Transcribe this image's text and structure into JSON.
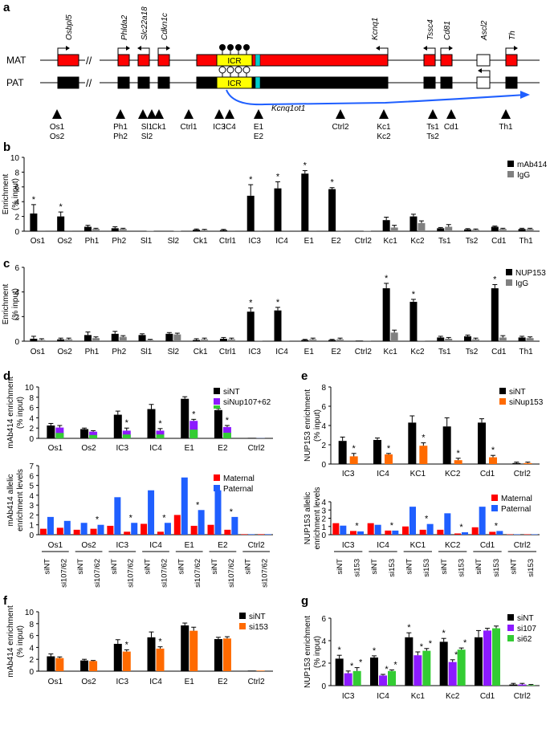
{
  "panels": {
    "a": "a",
    "b": "b",
    "c": "c",
    "d": "d",
    "e": "e",
    "f": "f",
    "g": "g"
  },
  "colors": {
    "red": "#ff0000",
    "black": "#000000",
    "gray": "#808080",
    "yellow": "#ffff00",
    "cyan": "#00cccc",
    "blue": "#1f5fff",
    "purple": "#8c1aff",
    "green": "#33cc33",
    "orange": "#ff6a00",
    "curve": "#1f5fff"
  },
  "locus": {
    "mat_label": "MAT",
    "pat_label": "PAT",
    "icr_label": "ICR",
    "noncoding_label": "Kcnq1ot1",
    "genes": [
      "Osbpl5",
      "Phlda2",
      "Slc22a18",
      "Cdkn1c",
      "Kcnq1",
      "Tssc4",
      "Cd81",
      "Ascl2",
      "Th"
    ],
    "probes": [
      [
        "Os1",
        "Os2"
      ],
      [
        "Ph1",
        "Ph2"
      ],
      [
        "Sl1",
        "Sl2"
      ],
      [
        "Ck1"
      ],
      [
        "Ctrl1"
      ],
      [
        "IC3"
      ],
      [
        "IC4"
      ],
      [
        "E1",
        "E2"
      ],
      [
        "Ctrl2"
      ],
      [
        "Kc1",
        "Kc2"
      ],
      [
        "Ts1",
        "Ts2"
      ],
      [
        "Cd1"
      ],
      [
        "Th1"
      ]
    ]
  },
  "chart_data": [
    {
      "id": "b",
      "type": "bar",
      "ylabel": "Enrichment\n(% input)",
      "ylim": [
        0,
        10
      ],
      "yticks": [
        0,
        2,
        4,
        6,
        8,
        10
      ],
      "categories": [
        "Os1",
        "Os2",
        "Ph1",
        "Ph2",
        "Sl1",
        "Sl2",
        "Ck1",
        "Ctrl1",
        "IC3",
        "IC4",
        "E1",
        "E2",
        "Ctrl2",
        "Kc1",
        "Kc2",
        "Ts1",
        "Ts2",
        "Cd1",
        "Th1"
      ],
      "series": [
        {
          "name": "mAb414",
          "color": "#000000",
          "values": [
            2.4,
            2.0,
            0.6,
            0.4,
            0.05,
            0.05,
            0.2,
            0.15,
            4.8,
            5.8,
            7.8,
            5.7,
            0.05,
            1.5,
            2.0,
            0.4,
            0.25,
            0.6,
            0.3
          ]
        },
        {
          "name": "IgG",
          "color": "#808080",
          "values": [
            0.1,
            0.1,
            0.3,
            0.3,
            0.05,
            0.05,
            0.15,
            0.1,
            0.1,
            0.1,
            0.1,
            0.1,
            0.05,
            0.5,
            1.1,
            0.6,
            0.2,
            0.3,
            0.3
          ]
        }
      ],
      "errors": [
        [
          1.2,
          0.6,
          0.2,
          0.2,
          0,
          0,
          0.1,
          0.1,
          1.5,
          0.9,
          0.4,
          0.2,
          0,
          0.4,
          0.3,
          0.1,
          0.1,
          0.1,
          0.1
        ],
        [
          0,
          0,
          0.1,
          0.1,
          0,
          0,
          0.1,
          0,
          0,
          0,
          0,
          0,
          0,
          0.3,
          0.3,
          0.3,
          0.1,
          0.1,
          0.1
        ]
      ],
      "stars": [
        "Os1",
        "Os2",
        "IC3",
        "IC4",
        "E1",
        "E2"
      ]
    },
    {
      "id": "c",
      "type": "bar",
      "ylabel": "Enrichment\n(% input)",
      "ylim": [
        0,
        6
      ],
      "yticks": [
        0,
        2,
        4,
        6
      ],
      "categories": [
        "Os1",
        "Os2",
        "Ph1",
        "Ph2",
        "Sl1",
        "Sl2",
        "Ck1",
        "Ctrl1",
        "IC3",
        "IC4",
        "E1",
        "E2",
        "Ctrl2",
        "Kc1",
        "Kc2",
        "Ts1",
        "Ts2",
        "Cd1",
        "Th1"
      ],
      "series": [
        {
          "name": "NUP153",
          "color": "#000000",
          "values": [
            0.2,
            0.15,
            0.5,
            0.6,
            0.5,
            0.6,
            0.1,
            0.2,
            2.4,
            2.5,
            0.1,
            0.1,
            0.05,
            4.3,
            3.2,
            0.3,
            0.4,
            4.3,
            0.3
          ]
        },
        {
          "name": "IgG",
          "color": "#808080",
          "values": [
            0.1,
            0.15,
            0.25,
            0.35,
            0.1,
            0.55,
            0.15,
            0.15,
            0.05,
            0.05,
            0.15,
            0.15,
            0.05,
            0.7,
            0.05,
            0.2,
            0.15,
            0.3,
            0.25
          ]
        }
      ],
      "errors": [
        [
          0.2,
          0.1,
          0.25,
          0.2,
          0.1,
          0.1,
          0.1,
          0.1,
          0.3,
          0.25,
          0.05,
          0.05,
          0,
          0.4,
          0.2,
          0.1,
          0.1,
          0.3,
          0.1
        ],
        [
          0.1,
          0.1,
          0.1,
          0.1,
          0.05,
          0.1,
          0.1,
          0.1,
          0,
          0,
          0.1,
          0.1,
          0,
          0.2,
          0,
          0.1,
          0.1,
          0.15,
          0.1
        ]
      ],
      "stars": [
        "IC3",
        "IC4",
        "Kc1",
        "Kc2",
        "Cd1"
      ]
    },
    {
      "id": "d-top",
      "type": "bar",
      "ylabel": "mAb414 enrichment\n(% input)",
      "ylim": [
        0,
        10
      ],
      "yticks": [
        0,
        2,
        4,
        6,
        8,
        10
      ],
      "categories": [
        "Os1",
        "Os2",
        "IC3",
        "IC4",
        "E1",
        "E2",
        "Ctrl2"
      ],
      "series": [
        {
          "name": "siNT",
          "color": "#000000",
          "values": [
            2.5,
            1.8,
            4.6,
            5.7,
            7.7,
            5.5,
            0.1
          ]
        },
        {
          "name": "siNup107+62",
          "color": "#8c1aff",
          "values": [
            2.1,
            1.3,
            1.5,
            1.5,
            3.4,
            2.2,
            0.1
          ]
        }
      ],
      "errors": [
        [
          0.4,
          0.2,
          0.7,
          0.9,
          0.4,
          0.3,
          0
        ],
        [
          0.4,
          0.2,
          0.5,
          0.4,
          0.3,
          0.3,
          0
        ]
      ],
      "stars": [
        "IC3",
        "IC4",
        "E1",
        "E2"
      ]
    },
    {
      "id": "d-bottom",
      "type": "bar",
      "ylabel": "mAb414 allelic\nenrichment levels",
      "ylim": [
        0,
        7
      ],
      "yticks": [
        0,
        1,
        2,
        3,
        4,
        5,
        6,
        7
      ],
      "groups": [
        "Os1",
        "Os2",
        "IC3",
        "IC4",
        "E1",
        "E2",
        "Ctrl2"
      ],
      "categories": [
        "siNT",
        "si107/62",
        "siNT",
        "si107/62",
        "siNT",
        "si107/62",
        "siNT",
        "si107/62",
        "siNT",
        "si107/62",
        "siNT",
        "si107/62",
        "siNT",
        "si107/62"
      ],
      "series": [
        {
          "name": "Maternal",
          "color": "#ff0000",
          "values": [
            0.6,
            0.7,
            0.5,
            0.6,
            0.9,
            0.3,
            1.1,
            0.3,
            2.0,
            0.9,
            1.0,
            0.5,
            0.05,
            0.05
          ]
        },
        {
          "name": "Paternal",
          "color": "#1f5fff",
          "values": [
            1.8,
            1.4,
            1.2,
            1.0,
            3.8,
            1.2,
            4.5,
            1.2,
            5.8,
            2.5,
            4.5,
            1.8,
            0.05,
            0.05
          ]
        }
      ],
      "stars": [
        3,
        5,
        7,
        9,
        11
      ]
    },
    {
      "id": "e-top",
      "type": "bar",
      "ylabel": "NUP153 enrichment\n(% input)",
      "ylim": [
        0,
        8
      ],
      "yticks": [
        0,
        2,
        4,
        6,
        8
      ],
      "categories": [
        "IC3",
        "IC4",
        "KC1",
        "KC2",
        "Cd1",
        "Ctrl2"
      ],
      "series": [
        {
          "name": "siNT",
          "color": "#000000",
          "values": [
            2.4,
            2.5,
            4.3,
            3.9,
            4.3,
            0.1
          ]
        },
        {
          "name": "siNup153",
          "color": "#ff6a00",
          "values": [
            0.8,
            1.0,
            1.9,
            0.4,
            0.7,
            0.1
          ]
        }
      ],
      "errors": [
        [
          0.4,
          0.2,
          0.7,
          0.9,
          0.4,
          0.1
        ],
        [
          0.3,
          0.1,
          0.3,
          0.2,
          0.2,
          0.1
        ]
      ],
      "stars": [
        "IC3",
        "IC4",
        "KC1",
        "KC2",
        "Cd1"
      ]
    },
    {
      "id": "e-bottom",
      "type": "bar",
      "ylabel": "NUP153 allelic\nenrichment levels",
      "ylim": [
        0,
        4
      ],
      "yticks": [
        0,
        1,
        2,
        3,
        4
      ],
      "groups": [
        "IC3",
        "IC4",
        "KC1",
        "KC2",
        "Cd1",
        "Ctrl2"
      ],
      "categories": [
        "siNT",
        "si153",
        "siNT",
        "si153",
        "siNT",
        "si153",
        "siNT",
        "si153",
        "siNT",
        "si153",
        "siNT",
        "si153"
      ],
      "series": [
        {
          "name": "Maternal",
          "color": "#ff0000",
          "values": [
            1.4,
            0.45,
            1.4,
            0.5,
            1.0,
            0.6,
            0.6,
            0.15,
            0.9,
            0.35,
            0.05,
            0.05
          ]
        },
        {
          "name": "Paternal",
          "color": "#1f5fff",
          "values": [
            1.1,
            0.4,
            1.2,
            0.5,
            3.4,
            1.3,
            2.6,
            0.3,
            3.4,
            0.45,
            0.05,
            0.05
          ]
        }
      ],
      "stars": [
        1,
        3,
        5,
        7,
        9
      ]
    },
    {
      "id": "f",
      "type": "bar",
      "ylabel": "mAb414 enrichment\n(% input)",
      "ylim": [
        0,
        10
      ],
      "yticks": [
        0,
        2,
        4,
        6,
        8,
        10
      ],
      "categories": [
        "Os1",
        "Os2",
        "IC3",
        "IC4",
        "E1",
        "E2",
        "Ctrl2"
      ],
      "series": [
        {
          "name": "siNT",
          "color": "#000000",
          "values": [
            2.5,
            1.8,
            4.6,
            5.7,
            7.7,
            5.4,
            0.1
          ]
        },
        {
          "name": "si153",
          "color": "#ff6a00",
          "values": [
            2.2,
            1.7,
            3.3,
            3.8,
            6.8,
            5.5,
            0.1
          ]
        }
      ],
      "errors": [
        [
          0.4,
          0.2,
          0.7,
          0.9,
          0.4,
          0.3,
          0
        ],
        [
          0.2,
          0.1,
          0.3,
          0.3,
          0.6,
          0.3,
          0
        ]
      ],
      "stars": [
        "IC3",
        "IC4"
      ]
    },
    {
      "id": "g",
      "type": "bar",
      "ylabel": "NUP153 enrichment\n(% input)",
      "ylim": [
        0,
        6
      ],
      "yticks": [
        0,
        2,
        4,
        6
      ],
      "categories": [
        "IC3",
        "IC4",
        "Kc1",
        "Kc2",
        "Cd1",
        "Ctrl2"
      ],
      "series": [
        {
          "name": "siNT",
          "color": "#000000",
          "values": [
            2.4,
            2.5,
            4.3,
            3.9,
            4.3,
            0.1
          ]
        },
        {
          "name": "si107",
          "color": "#8c1aff",
          "values": [
            1.1,
            0.9,
            2.7,
            2.1,
            4.9,
            0.1
          ]
        },
        {
          "name": "si62",
          "color": "#33cc33",
          "values": [
            1.3,
            1.3,
            3.1,
            3.2,
            5.1,
            0.05
          ]
        }
      ],
      "errors": [
        [
          0.3,
          0.15,
          0.4,
          0.3,
          0.6,
          0.1
        ],
        [
          0.2,
          0.1,
          0.3,
          0.2,
          0.2,
          0.1
        ],
        [
          0.3,
          0.1,
          0.2,
          0.15,
          0.2,
          0.05
        ]
      ],
      "stars": [
        "IC3",
        "IC4",
        "Kc1",
        "Kc2"
      ]
    }
  ]
}
